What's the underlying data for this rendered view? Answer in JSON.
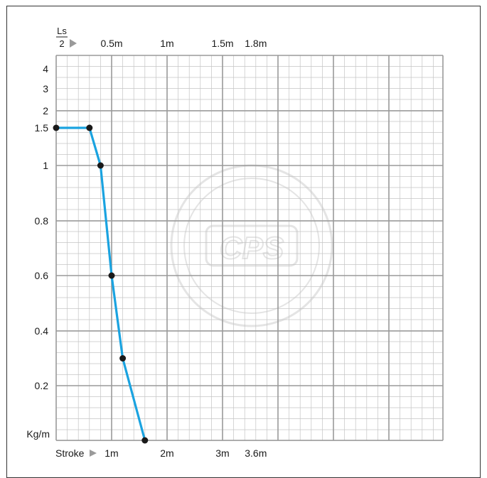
{
  "chart_data": {
    "type": "line",
    "title": "",
    "ylabel": "Kg/m",
    "xlabel": "Stroke",
    "top_axis_label": {
      "numerator": "Ls",
      "denominator": "2"
    },
    "x_ticks": [
      {
        "value": 1,
        "label": "1m"
      },
      {
        "value": 2,
        "label": "2m"
      },
      {
        "value": 3,
        "label": "3m"
      },
      {
        "value": 3.6,
        "label": "3.6m"
      }
    ],
    "top_ticks": [
      {
        "value": 1,
        "label": "0.5m"
      },
      {
        "value": 2,
        "label": "1m"
      },
      {
        "value": 3,
        "label": "1.5m"
      },
      {
        "value": 3.6,
        "label": "1.8m"
      }
    ],
    "y_ticks": [
      {
        "value": 0.2,
        "label": "0.2"
      },
      {
        "value": 0.4,
        "label": "0.4"
      },
      {
        "value": 0.6,
        "label": "0.6"
      },
      {
        "value": 0.8,
        "label": "0.8"
      },
      {
        "value": 1,
        "label": "1"
      },
      {
        "value": 1.5,
        "label": "1.5"
      },
      {
        "value": 2,
        "label": "2"
      },
      {
        "value": 3,
        "label": "3"
      },
      {
        "value": 4,
        "label": "4"
      }
    ],
    "series": [
      {
        "color": "#1aa3e0",
        "points": [
          {
            "x": 0.0,
            "y": 1.5
          },
          {
            "x": 0.6,
            "y": 1.5
          },
          {
            "x": 0.8,
            "y": 1.0
          },
          {
            "x": 1.0,
            "y": 0.6
          },
          {
            "x": 1.2,
            "y": 0.3
          },
          {
            "x": 1.6,
            "y": 0.0
          }
        ]
      }
    ],
    "grid": true,
    "watermark": "CPS",
    "colors": {
      "line": "#1aa3e0",
      "marker": "#1a1a1a",
      "grid": "#b5b5b5",
      "frame": "#333333"
    }
  }
}
